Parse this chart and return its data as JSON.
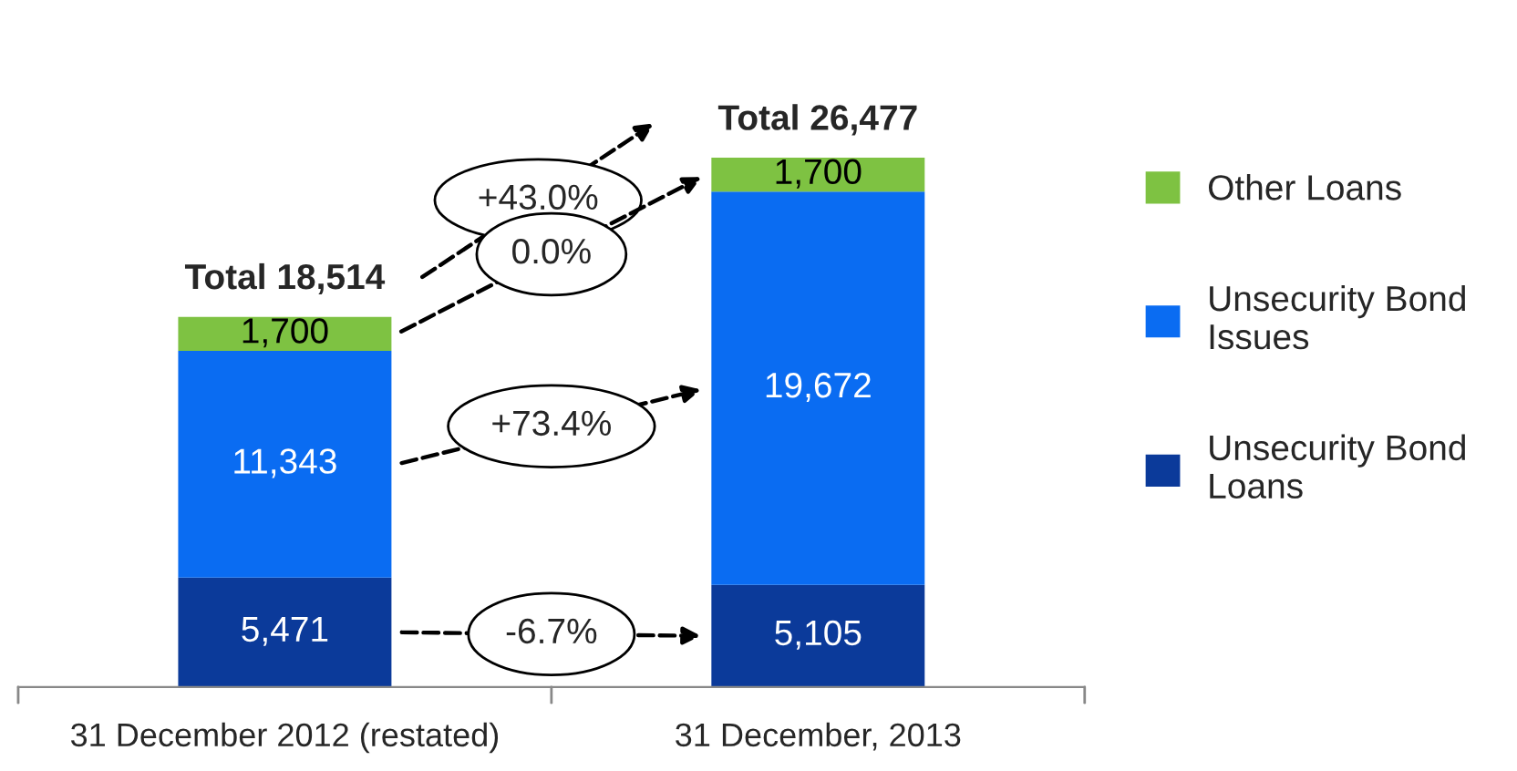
{
  "chart_data": {
    "type": "bar",
    "stacked": true,
    "categories": [
      "31 December 2012 (restated)",
      "31 December, 2013"
    ],
    "series": [
      {
        "name": "Unsecurity Bond Loans",
        "color": "#0b3a9a",
        "values": [
          5471,
          5105
        ],
        "value_labels": [
          "5,471",
          "5,105"
        ]
      },
      {
        "name": "Unsecurity Bond Issues",
        "color": "#0a6cf2",
        "values": [
          11343,
          19672
        ],
        "value_labels": [
          "11,343",
          "19,672"
        ]
      },
      {
        "name": "Other Loans",
        "color": "#7ec242",
        "values": [
          1700,
          1700
        ],
        "value_labels": [
          "1,700",
          "1,700"
        ]
      }
    ],
    "totals": [
      "Total 18,514",
      "Total 26,477"
    ],
    "annotations": [
      "+43.0%",
      "0.0%",
      "+73.4%",
      "-6.7%"
    ],
    "legend": "right"
  }
}
